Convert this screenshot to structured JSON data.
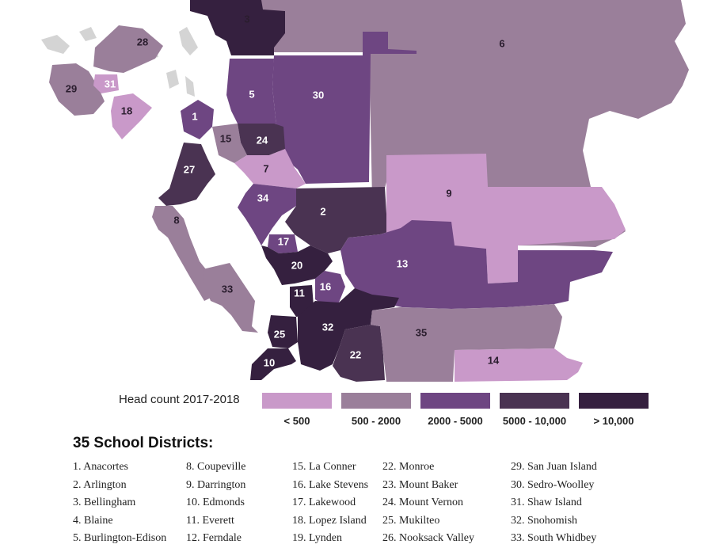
{
  "colors": {
    "lt500": "#c999c9",
    "r500_2000": "#9a7f9a",
    "r2000_5000": "#6e4682",
    "r5000_10000": "#4a3352",
    "gt10000": "#35203f",
    "water_island": "#d4d4d4"
  },
  "map": {
    "district_labels": [
      "1",
      "2",
      "3",
      "5",
      "6",
      "7",
      "8",
      "9",
      "10",
      "11",
      "13",
      "14",
      "15",
      "16",
      "17",
      "18",
      "20",
      "22",
      "24",
      "25",
      "27",
      "28",
      "29",
      "30",
      "31",
      "32",
      "33",
      "34",
      "35"
    ]
  },
  "legend": {
    "title": "Head count 2017-2018",
    "items": [
      {
        "label": "< 500",
        "color": "#c999c9"
      },
      {
        "label": "500 - 2000",
        "color": "#9a7f9a"
      },
      {
        "label": "2000 - 5000",
        "color": "#6e4682"
      },
      {
        "label": "5000 - 10,000",
        "color": "#4a3352"
      },
      {
        "label": "> 10,000",
        "color": "#35203f"
      }
    ]
  },
  "district_list": {
    "title": "35 School Districts:",
    "columns": [
      [
        "1. Anacortes",
        "2. Arlington",
        "3. Bellingham",
        "4. Blaine",
        "5. Burlington-Edison"
      ],
      [
        "8. Coupeville",
        "9. Darrington",
        "10. Edmonds",
        "11. Everett",
        "12. Ferndale"
      ],
      [
        "15. La Conner",
        "16. Lake Stevens",
        "17. Lakewood",
        "18. Lopez Island",
        "19. Lynden"
      ],
      [
        "22. Monroe",
        "23. Mount Baker",
        "24. Mount Vernon",
        "25. Mukilteo",
        "26. Nooksack Valley"
      ],
      [
        "29. San Juan Island",
        "30. Sedro-Woolley",
        "31. Shaw Island",
        "32. Snohomish",
        "33. South Whidbey"
      ]
    ]
  }
}
